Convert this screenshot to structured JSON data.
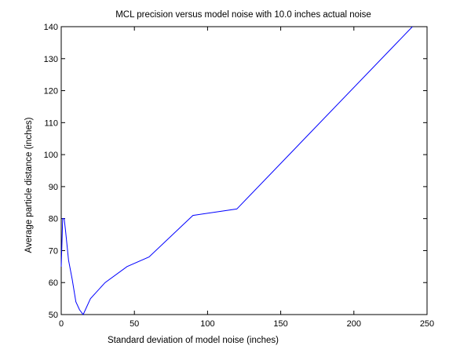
{
  "chart_data": {
    "type": "line",
    "title": "MCL precision versus model noise with 10.0 inches actual noise",
    "xlabel": "Standard deviation of model noise (inches)",
    "ylabel": "Average particle distance (inches)",
    "xlim": [
      0,
      250
    ],
    "ylim": [
      50,
      140
    ],
    "xticks": [
      0,
      50,
      100,
      150,
      200,
      250
    ],
    "yticks": [
      50,
      60,
      70,
      80,
      90,
      100,
      110,
      120,
      130,
      140
    ],
    "grid": false,
    "series": [
      {
        "color": "#0000ff",
        "x": [
          0,
          1,
          2,
          3,
          5,
          7.5,
          10,
          12.5,
          15,
          20,
          30,
          45,
          60,
          90,
          120,
          240
        ],
        "y": [
          65,
          80,
          80,
          76,
          67,
          61,
          54,
          51.5,
          50,
          55,
          60,
          65,
          68,
          81,
          83,
          140
        ]
      }
    ]
  }
}
